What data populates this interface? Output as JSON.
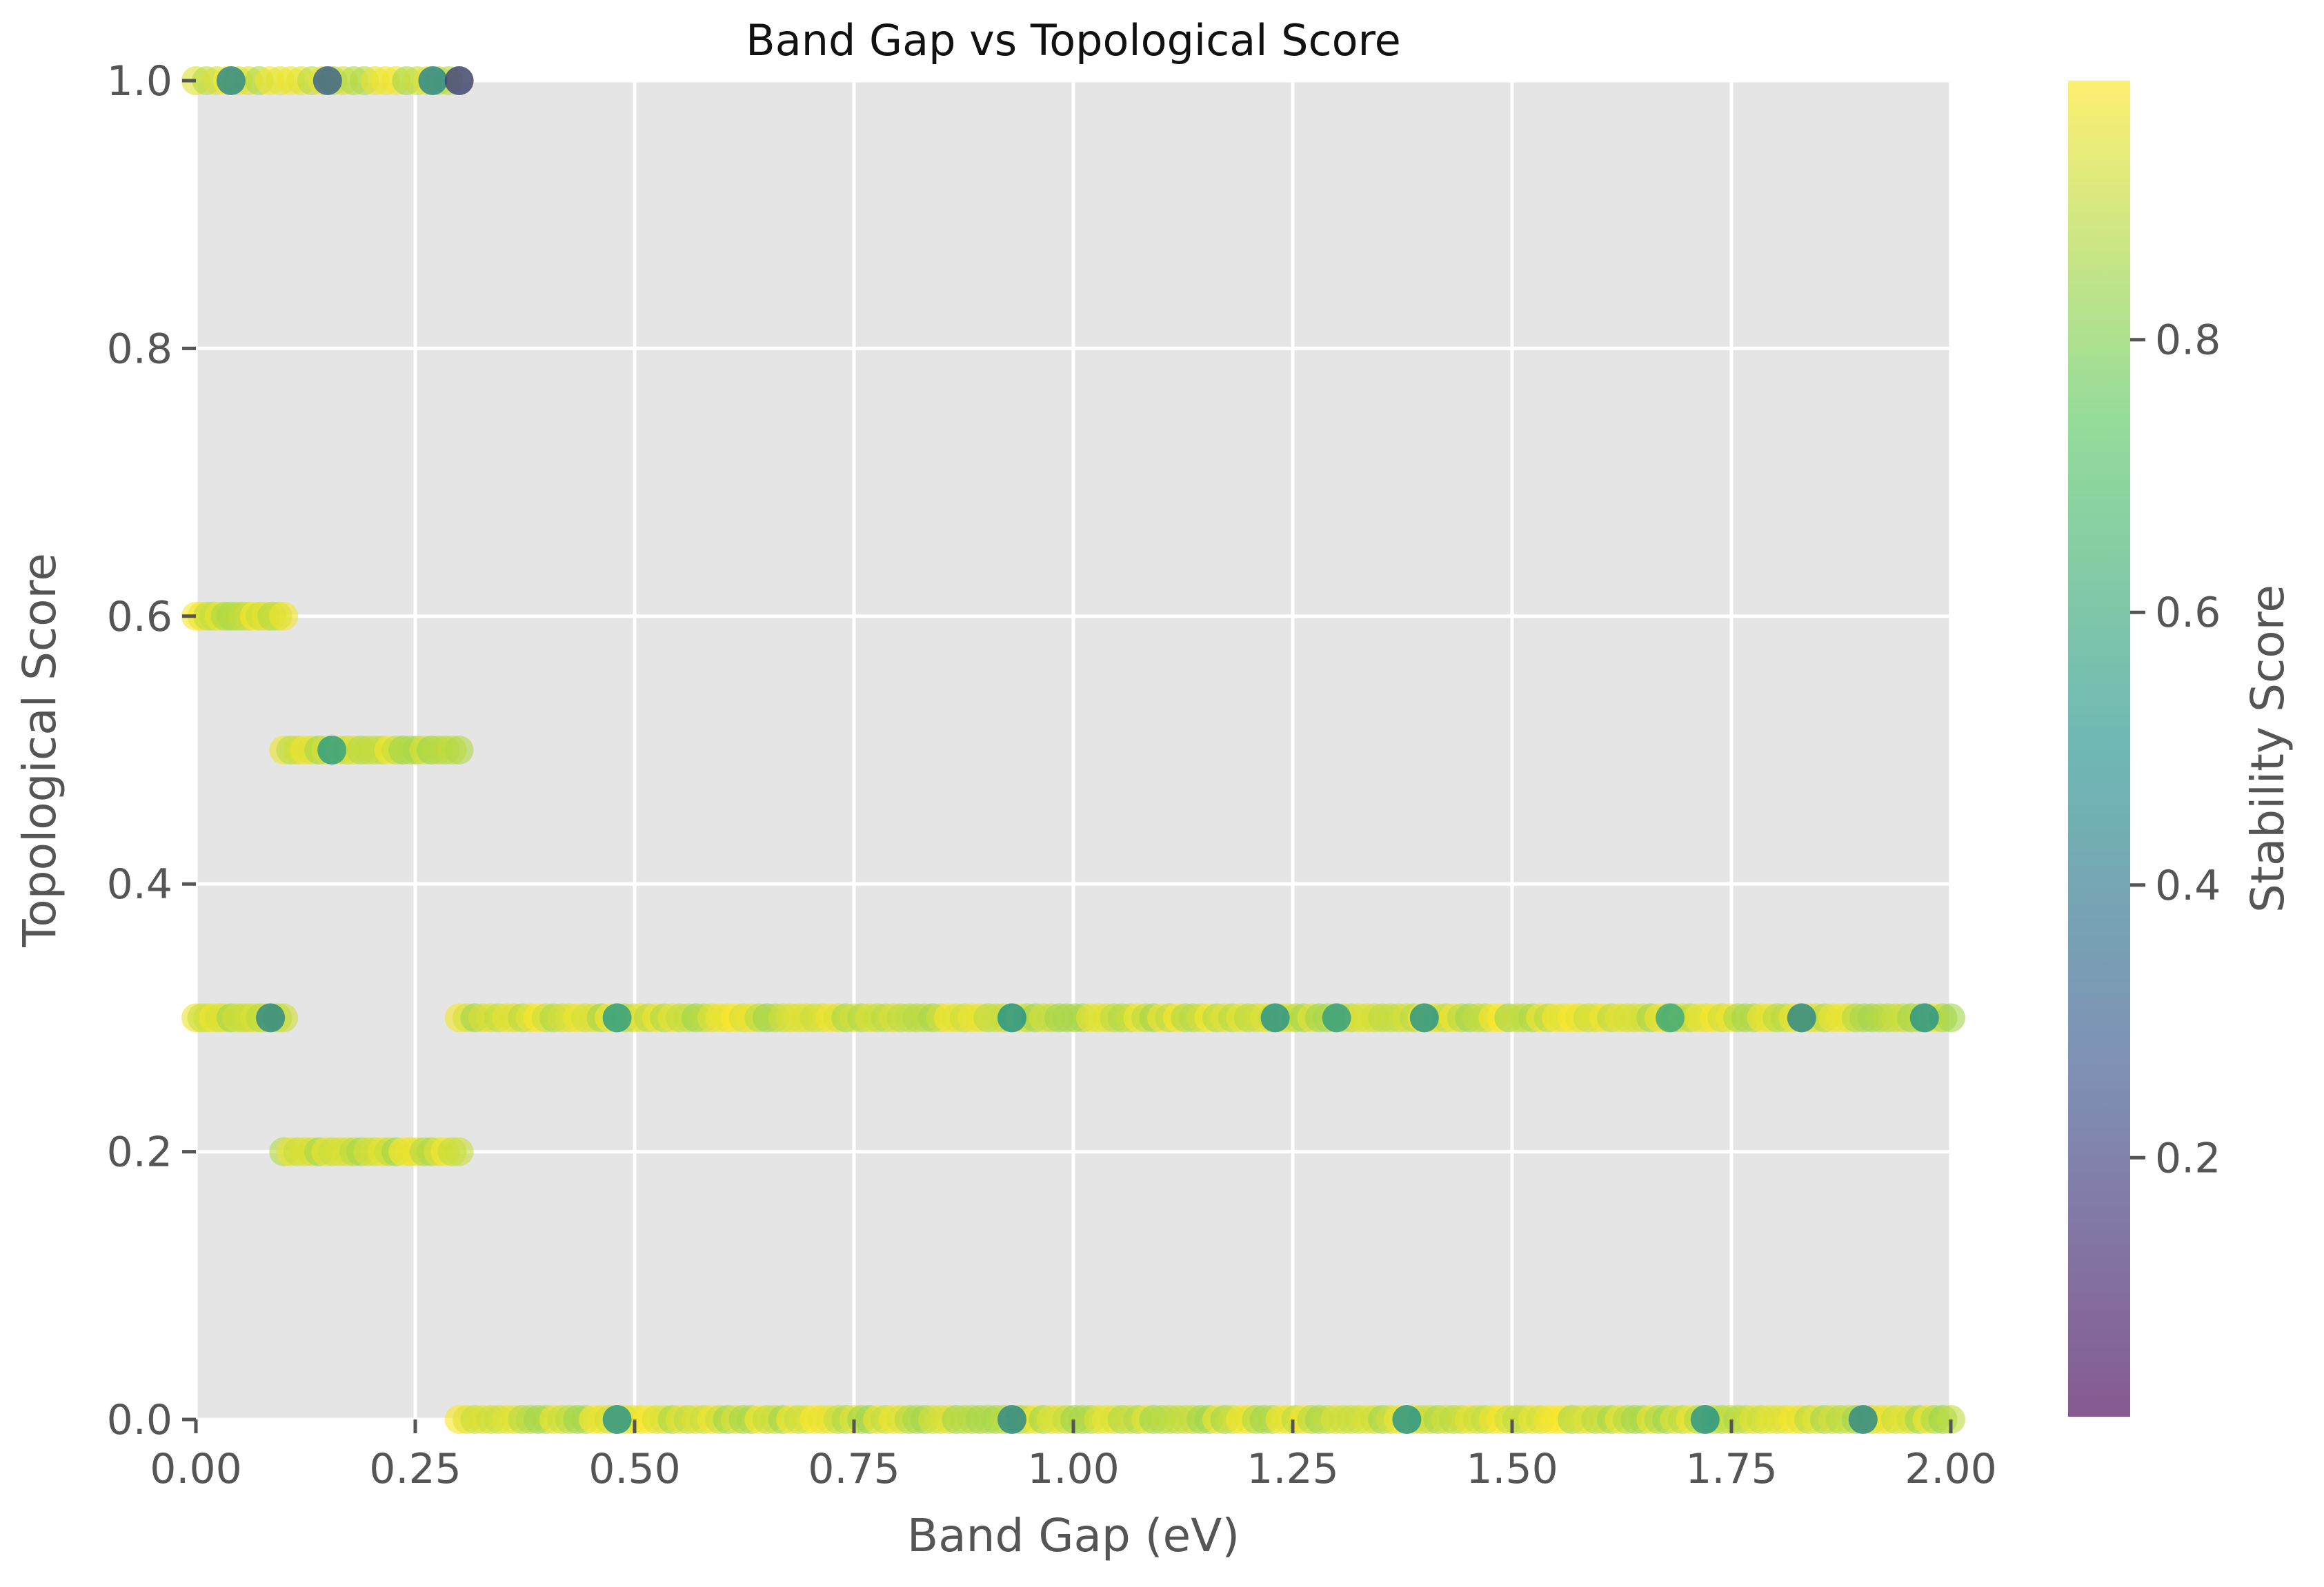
{
  "chart_data": {
    "type": "scatter",
    "title": "Band Gap vs Topological Score",
    "xlabel": "Band Gap (eV)",
    "ylabel": "Topological Score",
    "xlim": [
      0.0,
      2.0
    ],
    "ylim": [
      0.0,
      1.0
    ],
    "x_ticks": [
      "0.00",
      "0.25",
      "0.50",
      "0.75",
      "1.00",
      "1.25",
      "1.50",
      "1.75",
      "2.00"
    ],
    "y_ticks": [
      "0.0",
      "0.2",
      "0.4",
      "0.6",
      "0.8",
      "1.0"
    ],
    "grid": true,
    "colorbar": {
      "label": "Stability Score",
      "colormap": "viridis",
      "range": [
        0.01,
        0.99
      ],
      "ticks": [
        "0.2",
        "0.4",
        "0.6",
        "0.8"
      ]
    },
    "marker_alpha": 0.6,
    "bands": [
      {
        "y": 1.0,
        "x_min": 0.0,
        "x_max": 0.3,
        "points": 26,
        "highlights": [
          {
            "x": 0.04,
            "c": 0.45
          },
          {
            "x": 0.15,
            "c": 0.3
          },
          {
            "x": 0.27,
            "c": 0.45
          },
          {
            "x": 0.3,
            "c": 0.2
          }
        ]
      },
      {
        "y": 0.6,
        "x_min": 0.0,
        "x_max": 0.1,
        "points": 16,
        "highlights": []
      },
      {
        "y": 0.5,
        "x_min": 0.1,
        "x_max": 0.3,
        "points": 26,
        "highlights": [
          {
            "x": 0.155,
            "c": 0.55
          }
        ]
      },
      {
        "y": 0.3,
        "x_min": 0.0,
        "x_max": 0.1,
        "points": 16,
        "highlights": [
          {
            "x": 0.085,
            "c": 0.45
          }
        ]
      },
      {
        "y": 0.3,
        "x_min": 0.3,
        "x_max": 2.0,
        "points": 190,
        "highlights": [
          {
            "x": 0.48,
            "c": 0.55
          },
          {
            "x": 0.93,
            "c": 0.5
          },
          {
            "x": 1.23,
            "c": 0.5
          },
          {
            "x": 1.3,
            "c": 0.55
          },
          {
            "x": 1.4,
            "c": 0.5
          },
          {
            "x": 1.68,
            "c": 0.6
          },
          {
            "x": 1.83,
            "c": 0.45
          },
          {
            "x": 1.97,
            "c": 0.5
          }
        ]
      },
      {
        "y": 0.2,
        "x_min": 0.1,
        "x_max": 0.3,
        "points": 26,
        "highlights": []
      },
      {
        "y": 0.0,
        "x_min": 0.3,
        "x_max": 2.0,
        "points": 190,
        "highlights": [
          {
            "x": 0.48,
            "c": 0.5
          },
          {
            "x": 0.93,
            "c": 0.45
          },
          {
            "x": 1.38,
            "c": 0.5
          },
          {
            "x": 1.72,
            "c": 0.5
          },
          {
            "x": 1.9,
            "c": 0.45
          }
        ]
      }
    ]
  }
}
